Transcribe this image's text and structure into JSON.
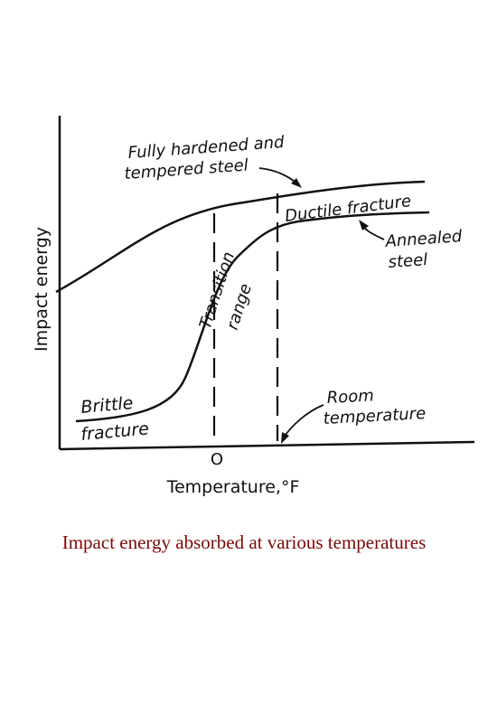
{
  "chart_data": {
    "type": "line",
    "xlabel": "Temperature,°F",
    "ylabel": "Impact energy",
    "x_ticks": [
      {
        "value": 0,
        "label": "O"
      }
    ],
    "series": [
      {
        "name": "Fully hardened and tempered steel"
      },
      {
        "name": "Annealed steel"
      }
    ],
    "annotations": {
      "hardened": {
        "line1": "Fully hardened and",
        "line2": "tempered steel"
      },
      "ductile": "Ductile fracture",
      "annealed": {
        "line1": "Annealed",
        "line2": "steel"
      },
      "transition": {
        "line1": "Transition",
        "line2": "range"
      },
      "brittle": {
        "line1": "Brittle",
        "line2": "fracture"
      },
      "room": {
        "line1": "Room",
        "line2": "temperature"
      }
    },
    "grid": false,
    "legend": "none"
  },
  "caption": "Impact energy absorbed at various temperatures"
}
